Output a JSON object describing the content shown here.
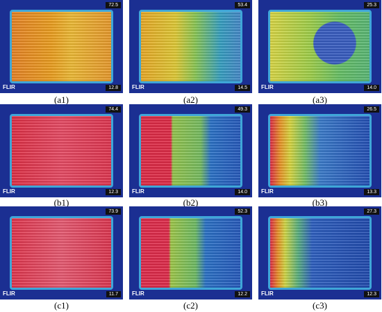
{
  "panels": [
    {
      "label": "(a1)",
      "max": "72.5",
      "min": "12.8",
      "logo": "FLIR"
    },
    {
      "label": "(a2)",
      "max": "53.4",
      "min": "14.5",
      "logo": "FLIR"
    },
    {
      "label": "(a3)",
      "max": "25.3",
      "min": "14.0",
      "logo": "FLIR"
    },
    {
      "label": "(b1)",
      "max": "74.4",
      "min": "12.3",
      "logo": "FLIR"
    },
    {
      "label": "(b2)",
      "max": "49.3",
      "min": "14.0",
      "logo": "FLIR"
    },
    {
      "label": "(b3)",
      "max": "26.5",
      "min": "13.3",
      "logo": "FLIR"
    },
    {
      "label": "(c1)",
      "max": "73.9",
      "min": "11.7",
      "logo": "FLIR"
    },
    {
      "label": "(c2)",
      "max": "52.3",
      "min": "12.2",
      "logo": "FLIR"
    },
    {
      "label": "(c3)",
      "max": "27.3",
      "min": "12.3",
      "logo": "FLIR"
    }
  ]
}
